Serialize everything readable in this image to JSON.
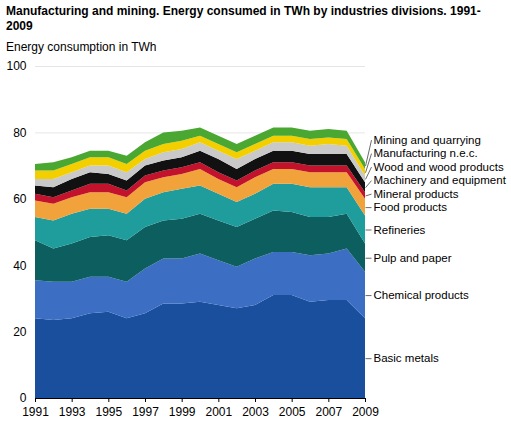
{
  "chart_data": {
    "type": "area",
    "stacked": true,
    "title": "Manufacturing and mining. Energy consumed in TWh by industries divisions. 1991-2009",
    "y_label": "Energy consumption in TWh",
    "x": [
      1991,
      1992,
      1993,
      1994,
      1995,
      1996,
      1997,
      1998,
      1999,
      2000,
      2001,
      2002,
      2003,
      2004,
      2005,
      2006,
      2007,
      2008,
      2009
    ],
    "xlim": [
      1991,
      2009
    ],
    "xticks": [
      1991,
      1993,
      1995,
      1997,
      1999,
      2001,
      2003,
      2005,
      2007,
      2009
    ],
    "ylim": [
      0,
      100
    ],
    "yticks": [
      0,
      20,
      40,
      60,
      80,
      100
    ],
    "grid": true,
    "series": [
      {
        "name": "Basic metals",
        "color": "#1a4f9e",
        "values": [
          24,
          23.5,
          24,
          25.5,
          26,
          24,
          25.5,
          28.5,
          28.5,
          29,
          28,
          27,
          28,
          31,
          31,
          29,
          29.5,
          29.5,
          24
        ]
      },
      {
        "name": "Chemical products",
        "color": "#3c6fc4",
        "values": [
          11.5,
          11.5,
          11,
          11,
          10.5,
          11,
          13.5,
          13.5,
          13.5,
          14.5,
          13.5,
          12.5,
          14,
          13,
          13,
          14,
          14,
          15.5,
          14
        ]
      },
      {
        "name": "Pulp and paper",
        "color": "#0d5e5e",
        "values": [
          12,
          10,
          11.5,
          12,
          12.5,
          12.5,
          12.5,
          11.5,
          12,
          12,
          12,
          12,
          12,
          12.5,
          12,
          11.5,
          11,
          10.5,
          8.5
        ]
      },
      {
        "name": "Refineries",
        "color": "#1f9c9c",
        "values": [
          7,
          8.5,
          9,
          8.5,
          8,
          8,
          8.5,
          8.5,
          9,
          8.5,
          8,
          7.5,
          7.5,
          8,
          8.5,
          9,
          9,
          8,
          8.5
        ]
      },
      {
        "name": "Food products",
        "color": "#f2a23a",
        "values": [
          5,
          5,
          5,
          5,
          5,
          5,
          5,
          4.5,
          4.5,
          5,
          4.5,
          4.5,
          5,
          4.5,
          4.5,
          4.5,
          4.5,
          4.5,
          5
        ]
      },
      {
        "name": "Mineral products",
        "color": "#c3122c",
        "values": [
          2,
          2,
          2,
          2.5,
          2.5,
          2,
          2,
          2,
          2,
          2,
          2,
          2,
          2,
          2,
          2,
          2,
          2,
          2,
          2
        ]
      },
      {
        "name": "Machinery and equipment",
        "color": "#111111",
        "values": [
          2.5,
          3,
          3.5,
          3.5,
          3,
          3,
          3,
          3,
          3,
          3.5,
          4,
          3.5,
          3.5,
          3.5,
          3.5,
          3.5,
          3.5,
          3.5,
          3
        ]
      },
      {
        "name": "Wood and wood products",
        "color": "#c9c9c9",
        "values": [
          2,
          2.5,
          2,
          2,
          2.5,
          2.5,
          2,
          2.5,
          2.5,
          2.5,
          2.5,
          3,
          2.5,
          2.5,
          2.5,
          2.5,
          3,
          2.5,
          2
        ]
      },
      {
        "name": "Manufacturing n.e.c.",
        "color": "#f3cf00",
        "values": [
          2.5,
          2.5,
          2.5,
          2.5,
          2.5,
          2.5,
          2.5,
          2.5,
          2.5,
          2,
          2,
          2,
          2,
          2,
          2,
          2,
          2,
          2,
          2
        ]
      },
      {
        "name": "Mining and quarrying",
        "color": "#4aa832",
        "values": [
          2,
          2.5,
          2,
          2,
          2,
          2.5,
          2.5,
          3.5,
          3,
          2.5,
          2.5,
          2.5,
          2.5,
          2.5,
          2.5,
          2.5,
          2.5,
          2.5,
          2
        ]
      }
    ]
  }
}
